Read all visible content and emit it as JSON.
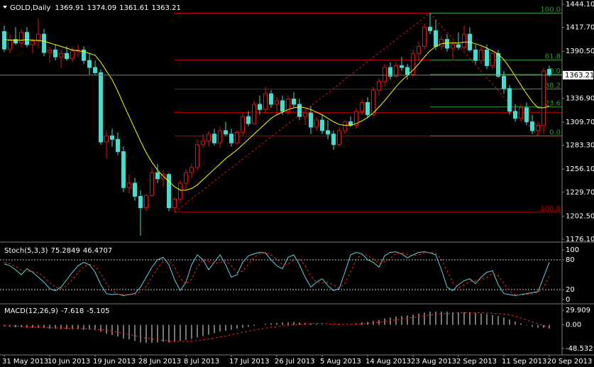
{
  "chart_data": [
    {
      "type": "candlestick",
      "title": "GOLD,Daily",
      "categories": [
        "31 May 2013",
        null,
        null,
        null,
        null,
        null,
        null,
        null,
        "10 Jun 2013",
        null,
        null,
        null,
        null,
        null,
        null,
        null,
        "19 Jun 2013",
        null,
        null,
        null,
        null,
        null,
        null,
        null,
        "28 Jun 2013",
        null,
        null,
        null,
        null,
        null,
        null,
        null,
        "8 Jul 2013",
        null,
        null,
        null,
        null,
        null,
        null,
        null,
        "17 Jul 2013",
        null,
        null,
        null,
        null,
        null,
        null,
        null,
        "26 Jul 2013",
        null,
        null,
        null,
        null,
        null,
        null,
        null,
        "5 Aug 2013",
        null,
        null,
        null,
        null,
        null,
        null,
        null,
        "14 Aug 2013",
        null,
        null,
        null,
        null,
        null,
        null,
        null,
        "23 Aug 2013",
        null,
        null,
        null,
        null,
        null,
        null,
        null,
        "2 Sep 2013",
        null,
        null,
        null,
        null,
        null,
        null,
        null,
        "11 Sep 2013",
        null,
        null,
        null,
        null,
        null,
        null,
        null,
        "20 Sep 2013"
      ],
      "open": [
        1413,
        1393,
        1404,
        1400,
        1412,
        1398,
        1402,
        1410,
        1389,
        1392,
        1384,
        1388,
        1382,
        1391,
        1392,
        1380,
        1372,
        1366,
        1287,
        1294,
        1290,
        1276,
        1235,
        1240,
        1225,
        1212,
        1226,
        1252,
        1245,
        1250,
        1212,
        1222,
        1240,
        1252,
        1258,
        1284,
        1288,
        1296,
        1286,
        1300,
        1296,
        1286,
        1298,
        1316,
        1308,
        1330,
        1324,
        1342,
        1330,
        1334,
        1322,
        1336,
        1330,
        1316,
        1320,
        1304,
        1312,
        1300,
        1296,
        1284,
        1300,
        1310,
        1306,
        1322,
        1332,
        1318,
        1346,
        1356,
        1372,
        1362,
        1374,
        1372,
        1364,
        1388,
        1396,
        1418,
        1414,
        1396,
        1404,
        1394,
        1398,
        1395,
        1410,
        1392,
        1380,
        1392,
        1374,
        1388,
        1362,
        1348,
        1322,
        1314,
        1326,
        1310,
        1300,
        1306,
        1369.91
      ],
      "high": [
        1420,
        1410,
        1418,
        1416,
        1418,
        1405,
        1428,
        1416,
        1396,
        1398,
        1392,
        1396,
        1395,
        1398,
        1396,
        1388,
        1380,
        1370,
        1300,
        1302,
        1298,
        1282,
        1250,
        1246,
        1232,
        1228,
        1258,
        1262,
        1255,
        1252,
        1224,
        1244,
        1256,
        1262,
        1290,
        1296,
        1300,
        1302,
        1304,
        1310,
        1302,
        1300,
        1320,
        1322,
        1334,
        1340,
        1350,
        1346,
        1338,
        1340,
        1340,
        1344,
        1336,
        1324,
        1328,
        1316,
        1318,
        1312,
        1300,
        1304,
        1312,
        1316,
        1326,
        1336,
        1338,
        1350,
        1360,
        1376,
        1378,
        1378,
        1384,
        1376,
        1392,
        1402,
        1422,
        1434,
        1426,
        1408,
        1410,
        1402,
        1412,
        1420,
        1418,
        1398,
        1396,
        1398,
        1392,
        1392,
        1368,
        1352,
        1330,
        1330,
        1332,
        1318,
        1310,
        1372,
        1374.09
      ],
      "low": [
        1390,
        1388,
        1398,
        1395,
        1395,
        1388,
        1394,
        1385,
        1378,
        1380,
        1372,
        1380,
        1378,
        1384,
        1376,
        1364,
        1364,
        1284,
        1268,
        1282,
        1272,
        1230,
        1228,
        1220,
        1180,
        1208,
        1224,
        1240,
        1236,
        1208,
        1207,
        1218,
        1232,
        1246,
        1254,
        1280,
        1282,
        1283,
        1280,
        1294,
        1282,
        1284,
        1294,
        1305,
        1306,
        1318,
        1320,
        1326,
        1318,
        1318,
        1318,
        1326,
        1312,
        1306,
        1296,
        1300,
        1296,
        1290,
        1278,
        1282,
        1296,
        1304,
        1302,
        1318,
        1314,
        1316,
        1340,
        1350,
        1358,
        1360,
        1368,
        1358,
        1362,
        1380,
        1392,
        1410,
        1392,
        1392,
        1390,
        1380,
        1392,
        1392,
        1390,
        1376,
        1376,
        1370,
        1370,
        1360,
        1342,
        1318,
        1310,
        1310,
        1306,
        1296,
        1294,
        1296,
        1361.61
      ],
      "close": [
        1393,
        1404,
        1400,
        1412,
        1398,
        1402,
        1410,
        1389,
        1392,
        1384,
        1388,
        1382,
        1391,
        1392,
        1380,
        1372,
        1366,
        1287,
        1294,
        1290,
        1276,
        1235,
        1240,
        1225,
        1212,
        1226,
        1252,
        1245,
        1250,
        1212,
        1222,
        1240,
        1252,
        1258,
        1284,
        1288,
        1296,
        1286,
        1300,
        1296,
        1286,
        1298,
        1316,
        1308,
        1330,
        1324,
        1342,
        1330,
        1334,
        1322,
        1336,
        1330,
        1316,
        1320,
        1304,
        1312,
        1300,
        1296,
        1284,
        1300,
        1310,
        1306,
        1322,
        1332,
        1318,
        1346,
        1356,
        1372,
        1362,
        1374,
        1372,
        1364,
        1388,
        1396,
        1418,
        1414,
        1396,
        1404,
        1394,
        1398,
        1395,
        1410,
        1392,
        1380,
        1392,
        1374,
        1388,
        1362,
        1348,
        1322,
        1314,
        1326,
        1310,
        1300,
        1306,
        1368,
        1363.21
      ],
      "up_color": "#e01010",
      "up_fill": "#000000",
      "down_color": "#40e0d0",
      "ma": {
        "color": "#ffff00",
        "values": [
          1404,
          1403,
          1403,
          1403,
          1404,
          1403,
          1403,
          1402,
          1400,
          1398,
          1396,
          1394,
          1392,
          1391,
          1390,
          1388,
          1386,
          1378,
          1368,
          1358,
          1345,
          1330,
          1316,
          1302,
          1288,
          1275,
          1264,
          1255,
          1248,
          1242,
          1236,
          1232,
          1232,
          1234,
          1238,
          1244,
          1250,
          1256,
          1262,
          1268,
          1273,
          1278,
          1284,
          1290,
          1296,
          1302,
          1308,
          1314,
          1318,
          1321,
          1324,
          1326,
          1327,
          1326,
          1324,
          1321,
          1318,
          1314,
          1310,
          1307,
          1306,
          1306,
          1308,
          1311,
          1315,
          1320,
          1327,
          1334,
          1342,
          1350,
          1357,
          1363,
          1369,
          1376,
          1384,
          1391,
          1396,
          1399,
          1400,
          1400,
          1400,
          1401,
          1401,
          1399,
          1397,
          1394,
          1391,
          1387,
          1381,
          1372,
          1362,
          1352,
          1342,
          1333,
          1326,
          1326,
          1328
        ]
      },
      "price_line_color": "#808080",
      "fibo": [
        {
          "color": "#c00000",
          "anchor": 30,
          "lines": [
            {
              "price": 1434
            },
            {
              "price": 1380.4
            },
            {
              "price": 1347.3
            },
            {
              "price": 1320.5
            },
            {
              "price": 1293.7
            },
            {
              "price": 1207,
              "label": "100.0"
            }
          ]
        },
        {
          "color": "#2e9a2e",
          "anchor": 75,
          "lines": [
            {
              "price": 1434,
              "label": "100.0"
            },
            {
              "price": 1380.5,
              "label": "61.8"
            },
            {
              "price": 1364,
              "label": "0.0"
            },
            {
              "price": 1347.5,
              "label": "38.2"
            },
            {
              "price": 1327,
              "label": "23.6"
            },
            {
              "price": 1294,
              "label": "0.0"
            }
          ]
        }
      ],
      "trendline": {
        "color": "#e01010",
        "anchors": [
          30,
          75,
          94
        ],
        "prices": [
          1207,
          1434,
          1294
        ]
      },
      "ylim": [
        1176.1,
        1444.1
      ],
      "yticks": [
        {
          "value": 1444.1,
          "label": "1444.10"
        },
        {
          "value": 1417.7,
          "label": "1417.70"
        },
        {
          "value": 1390.5,
          "label": "1390.50"
        },
        {
          "value": 1336.9,
          "label": "1336.90"
        },
        {
          "value": 1309.7,
          "label": "1309.70"
        },
        {
          "value": 1283.3,
          "label": "1283.30"
        },
        {
          "value": 1256.1,
          "label": "1256.10"
        },
        {
          "value": 1229.7,
          "label": "1229.70"
        },
        {
          "value": 1202.5,
          "label": "1202.50"
        },
        {
          "value": 1176.1,
          "label": "1176.10"
        }
      ]
    },
    {
      "type": "stochastic",
      "title": "Stoch(5,3,3)",
      "series": [
        {
          "color": "#5fd3e6",
          "dashed": false,
          "values": [
            72,
            68,
            60,
            50,
            62,
            55,
            45,
            35,
            22,
            18,
            25,
            40,
            55,
            68,
            75,
            70,
            55,
            30,
            12,
            10,
            11,
            8,
            10,
            12,
            25,
            45,
            65,
            80,
            85,
            70,
            40,
            18,
            35,
            70,
            90,
            80,
            60,
            75,
            90,
            70,
            45,
            50,
            75,
            88,
            92,
            95,
            94,
            80,
            68,
            62,
            85,
            90,
            70,
            45,
            25,
            35,
            42,
            28,
            18,
            22,
            55,
            90,
            95,
            92,
            80,
            75,
            65,
            88,
            95,
            96,
            92,
            84,
            90,
            95,
            96,
            94,
            90,
            60,
            25,
            18,
            30,
            38,
            42,
            32,
            45,
            55,
            58,
            30,
            12,
            10,
            8,
            10,
            12,
            14,
            16,
            45,
            75.2849
          ]
        },
        {
          "color": "#ff2020",
          "dashed": true,
          "values": [
            75,
            72,
            67,
            59,
            57,
            56,
            54,
            45,
            34,
            25,
            22,
            28,
            40,
            54,
            66,
            71,
            67,
            52,
            32,
            17,
            11,
            10,
            10,
            10,
            16,
            27,
            45,
            63,
            77,
            78,
            65,
            43,
            31,
            41,
            65,
            80,
            77,
            72,
            75,
            78,
            68,
            55,
            57,
            71,
            85,
            92,
            94,
            90,
            81,
            70,
            72,
            79,
            82,
            68,
            47,
            35,
            34,
            35,
            29,
            23,
            32,
            56,
            80,
            92,
            89,
            82,
            73,
            76,
            83,
            93,
            94,
            91,
            89,
            90,
            94,
            95,
            93,
            81,
            58,
            34,
            24,
            29,
            37,
            37,
            40,
            44,
            53,
            48,
            33,
            17,
            10,
            9,
            10,
            12,
            14,
            25,
            46.4707
          ]
        }
      ],
      "levels": [
        20,
        80
      ],
      "level_color": "#c0c0c0",
      "ylim": [
        0,
        100
      ],
      "yticks": [
        100,
        80,
        20,
        0
      ]
    },
    {
      "type": "macd",
      "title": "MACD(12,26,9)",
      "series": [
        {
          "color": "#e8e8e8",
          "dashed": false,
          "style": "histogram",
          "values": [
            -3,
            -4,
            -5,
            -5,
            -6,
            -6,
            -6,
            -7,
            -8,
            -8,
            -9,
            -9,
            -9,
            -9,
            -10,
            -10,
            -11,
            -14,
            -18,
            -21,
            -24,
            -28,
            -30,
            -33,
            -36,
            -37,
            -37,
            -36,
            -35,
            -36,
            -35,
            -33,
            -31,
            -29,
            -26,
            -23,
            -20,
            -17,
            -14,
            -12,
            -10,
            -8,
            -6,
            -4,
            -2,
            0,
            2,
            3,
            4,
            5,
            5,
            6,
            5,
            4,
            3,
            2,
            1,
            0,
            -1,
            -1,
            0,
            1,
            3,
            5,
            6,
            8,
            10,
            13,
            15,
            17,
            18,
            19,
            21,
            23,
            25,
            27,
            27,
            27,
            27,
            26,
            26,
            26,
            25,
            24,
            23,
            22,
            20,
            18,
            15,
            11,
            7,
            3,
            -1,
            -4,
            -6,
            -6,
            -7.618
          ]
        },
        {
          "color": "#ff2020",
          "dashed": true,
          "style": "line",
          "values": [
            -2,
            -2,
            -3,
            -3,
            -4,
            -4,
            -5,
            -5,
            -6,
            -6,
            -7,
            -7,
            -8,
            -8,
            -8,
            -9,
            -9,
            -10,
            -11,
            -13,
            -15,
            -17,
            -20,
            -22,
            -25,
            -27,
            -29,
            -31,
            -32,
            -33,
            -34,
            -34,
            -34,
            -33,
            -32,
            -31,
            -29,
            -27,
            -25,
            -23,
            -20,
            -18,
            -15,
            -13,
            -11,
            -9,
            -7,
            -5,
            -4,
            -2,
            -1,
            0,
            1,
            2,
            2,
            3,
            3,
            2,
            2,
            1,
            1,
            1,
            1,
            2,
            3,
            4,
            5,
            7,
            8,
            10,
            12,
            14,
            15,
            17,
            19,
            20,
            22,
            23,
            23,
            24,
            24,
            25,
            25,
            25,
            25,
            24,
            24,
            23,
            22,
            20,
            17,
            14,
            10,
            6,
            2,
            -2,
            -5.105
          ]
        }
      ],
      "ylim": [
        -48.532,
        29.909
      ],
      "yticks": [
        29.909,
        {
          "value": 0,
          "label": "0.00"
        },
        -48.532
      ]
    }
  ]
}
